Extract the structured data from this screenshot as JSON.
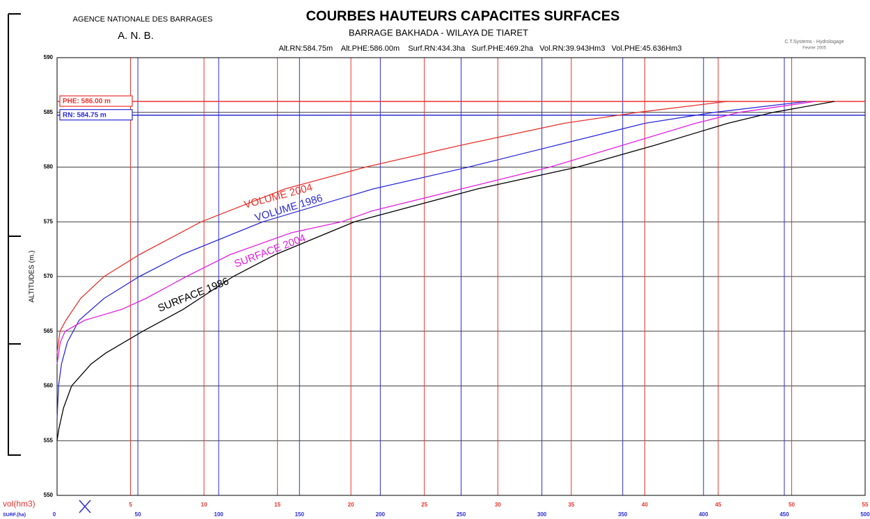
{
  "chart_data": {
    "type": "line",
    "agency": "AGENCE NATIONALE DES BARRAGES",
    "agency_short": "A. N. B.",
    "title": "COURBES HAUTEURS CAPACITES SURFACES",
    "subtitle": "BARRAGE BAKHADA - WILAYA DE TIARET",
    "info": "Alt.RN:584.75m    Alt.PHE:586.00m    Surf.RN:434.3ha   Surf.PHE:469.2ha   Vol.RN:39.943Hm3   Vol.PHE:45.636Hm3",
    "credit": "C.T.Systems - Hydrologage",
    "credit_date": "Fevrier 2005",
    "ylabel": "ALTITUDES  (m.)",
    "xlabel": "vol(hm3)",
    "x2label": "SURF.(ha)",
    "ylim": [
      550,
      590
    ],
    "yticks": [
      550,
      555,
      560,
      565,
      570,
      575,
      580,
      585,
      590
    ],
    "xlim": [
      0,
      55
    ],
    "xticks": [
      5,
      10,
      15,
      20,
      25,
      30,
      35,
      40,
      45,
      50,
      55
    ],
    "x2lim": [
      0,
      500
    ],
    "x2ticks": [
      0,
      50,
      100,
      150,
      200,
      250,
      300,
      350,
      400,
      450,
      500
    ],
    "xcolor": "#e8322d",
    "x2color": "#2b2bd6",
    "grid": true,
    "reference_lines": [
      {
        "label": "PHE: 586.00 m",
        "value": 586,
        "color": "#e8322d"
      },
      {
        "label": "RN: 584.75 m",
        "value": 584.75,
        "color": "#2b2bd6"
      }
    ],
    "series": [
      {
        "name": "VOLUME 2004",
        "color": "#e8322d",
        "x": [
          0,
          0.2,
          0.6,
          1.6,
          3.2,
          5.6,
          9.8,
          15.5,
          21,
          27.5,
          34.5,
          39.5,
          45.6
        ],
        "y": [
          563,
          565,
          566,
          568,
          570,
          572,
          575,
          578,
          580,
          582,
          584,
          585,
          586
        ]
      },
      {
        "name": "VOLUME 1986",
        "color": "#2b2bd6",
        "x": [
          0,
          0.1,
          0.3,
          0.7,
          1.5,
          3.2,
          5.6,
          8.5,
          14,
          21.5,
          28,
          34,
          40,
          44.7,
          51
        ],
        "y": [
          557,
          560,
          562,
          564,
          566,
          568,
          570,
          572,
          575,
          578,
          580,
          582,
          584,
          585,
          586
        ]
      },
      {
        "name": "SURFACE 2004",
        "color": "#e020e0",
        "axis": "x2",
        "x": [
          0,
          2,
          5,
          17,
          40,
          55,
          80,
          107,
          145,
          176,
          195,
          250,
          305,
          350,
          395,
          422,
          469
        ],
        "y": [
          562,
          564,
          565,
          566,
          567,
          568,
          570,
          572,
          574,
          575,
          576,
          578,
          580,
          582,
          584,
          585,
          586
        ]
      },
      {
        "name": "SURFACE 1986",
        "color": "#000000",
        "axis": "x2",
        "x": [
          0,
          1,
          4,
          9,
          21,
          30,
          53,
          78,
          109,
          135,
          184,
          260,
          322,
          370,
          415,
          443,
          481
        ],
        "y": [
          555,
          556,
          558,
          560,
          562,
          563,
          565,
          567,
          570,
          572,
          575,
          578,
          580,
          582,
          584,
          585,
          586
        ]
      }
    ]
  }
}
